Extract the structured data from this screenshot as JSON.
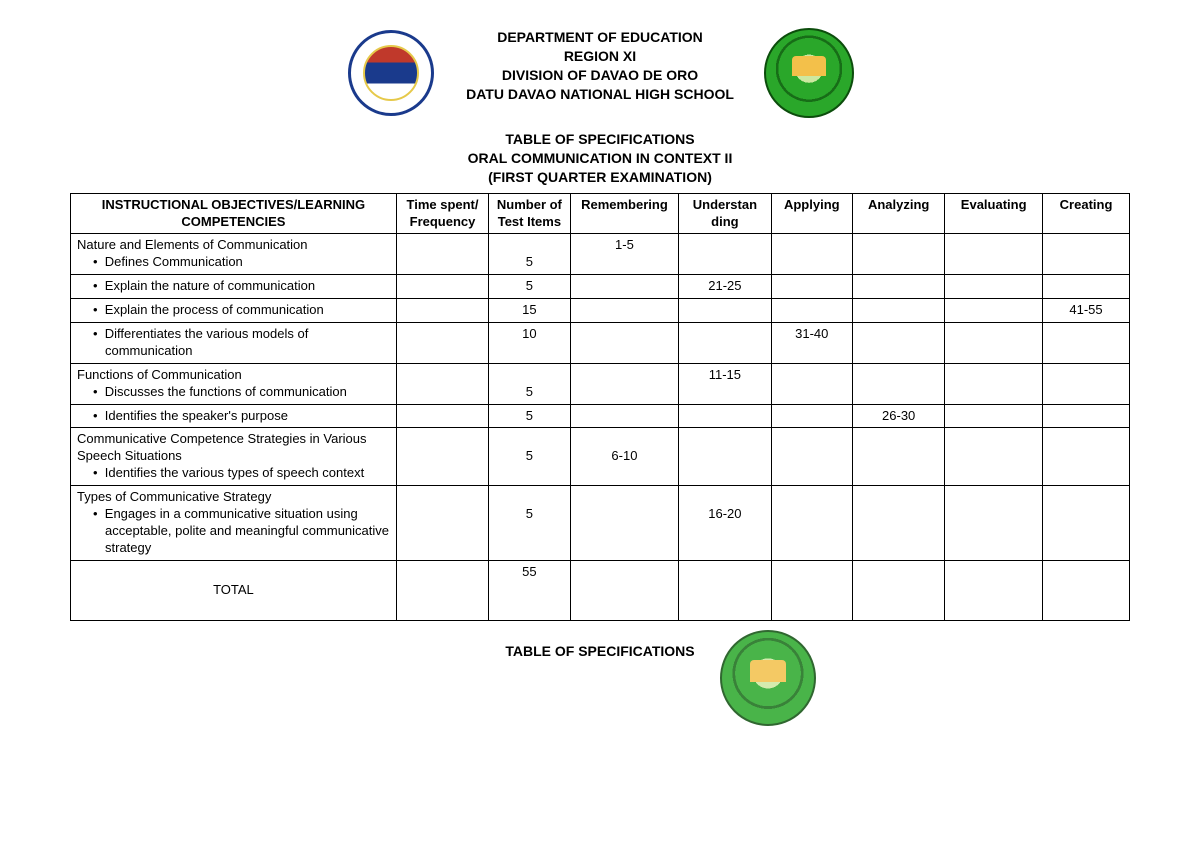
{
  "header": {
    "lines": [
      "DEPARTMENT OF EDUCATION",
      "REGION XI",
      "DIVISION OF DAVAO DE ORO",
      "DATU DAVAO NATIONAL HIGH SCHOOL"
    ],
    "sub_lines": [
      "TABLE OF SPECIFICATIONS",
      "ORAL COMMUNICATION IN CONTEXT II",
      "(FIRST QUARTER EXAMINATION)"
    ]
  },
  "table": {
    "columns": [
      "INSTRUCTIONAL OBJECTIVES/LEARNING COMPETENCIES",
      "Time spent/ Frequency",
      "Number of Test Items",
      "Remembering",
      "Understan ding",
      "Applying",
      "Analyzing",
      "Evaluating",
      "Creating"
    ],
    "col_widths_pct": [
      30,
      8.5,
      7.5,
      10,
      8.5,
      7.5,
      8.5,
      9,
      8
    ],
    "rows": [
      {
        "label_lines": [
          {
            "text": "Nature and Elements of Communication",
            "style": "plain"
          },
          {
            "text": "Defines Communication",
            "style": "bullet"
          }
        ],
        "time": "",
        "items": "5",
        "remembering": "1-5",
        "understanding": "",
        "applying": "",
        "analyzing": "",
        "evaluating": "",
        "creating": ""
      },
      {
        "label_lines": [
          {
            "text": "Explain the nature of communication",
            "style": "bullet"
          }
        ],
        "time": "",
        "items": "5",
        "remembering": "",
        "understanding": "21-25",
        "applying": "",
        "analyzing": "",
        "evaluating": "",
        "creating": ""
      },
      {
        "label_lines": [
          {
            "text": "Explain the process of communication",
            "style": "bullet"
          }
        ],
        "time": "",
        "items": "15",
        "remembering": "",
        "understanding": "",
        "applying": "",
        "analyzing": "",
        "evaluating": "",
        "creating": "41-55"
      },
      {
        "label_lines": [
          {
            "text": "Differentiates the various models of communication",
            "style": "bullet"
          }
        ],
        "time": "",
        "items": "10",
        "remembering": "",
        "understanding": "",
        "applying": "31-40",
        "analyzing": "",
        "evaluating": "",
        "creating": ""
      },
      {
        "label_lines": [
          {
            "text": "Functions of Communication",
            "style": "plain"
          },
          {
            "text": "Discusses the functions of communication",
            "style": "bullet"
          }
        ],
        "time": "",
        "items": "5",
        "remembering": "",
        "understanding": "11-15",
        "applying": "",
        "analyzing": "",
        "evaluating": "",
        "creating": ""
      },
      {
        "label_lines": [
          {
            "text": "Identifies the speaker's purpose",
            "style": "bullet"
          }
        ],
        "time": "",
        "items": "5",
        "remembering": "",
        "understanding": "",
        "applying": "",
        "analyzing": "26-30",
        "evaluating": "",
        "creating": ""
      },
      {
        "label_lines": [
          {
            "text": "Communicative Competence Strategies in Various Speech Situations",
            "style": "plain"
          },
          {
            "text": "Identifies the various types of speech context",
            "style": "bullet-justify"
          }
        ],
        "time": "",
        "items": "5",
        "remembering": "6-10",
        "understanding": "",
        "applying": "",
        "analyzing": "",
        "evaluating": "",
        "creating": "",
        "remembering_offset": true
      },
      {
        "label_lines": [
          {
            "text": "Types of Communicative Strategy",
            "style": "plain"
          },
          {
            "text": "Engages in a communicative situation using acceptable, polite and meaningful communicative strategy",
            "style": "bullet"
          }
        ],
        "time": "",
        "items": "5",
        "remembering": "",
        "understanding": "16-20",
        "applying": "",
        "analyzing": "",
        "evaluating": "",
        "creating": "",
        "understanding_offset": true
      },
      {
        "label_lines": [
          {
            "text": "TOTAL",
            "style": "total"
          }
        ],
        "time": "",
        "items": "55",
        "remembering": "",
        "understanding": "",
        "applying": "",
        "analyzing": "",
        "evaluating": "",
        "creating": ""
      }
    ]
  },
  "footer": {
    "title": "TABLE OF SPECIFICATIONS"
  },
  "colors": {
    "border": "#000000",
    "text": "#000000",
    "background": "#ffffff"
  },
  "typography": {
    "font_family": "Arial, sans-serif",
    "body_fontsize_pt": 10,
    "header_fontsize_pt": 11,
    "header_weight": "bold"
  }
}
